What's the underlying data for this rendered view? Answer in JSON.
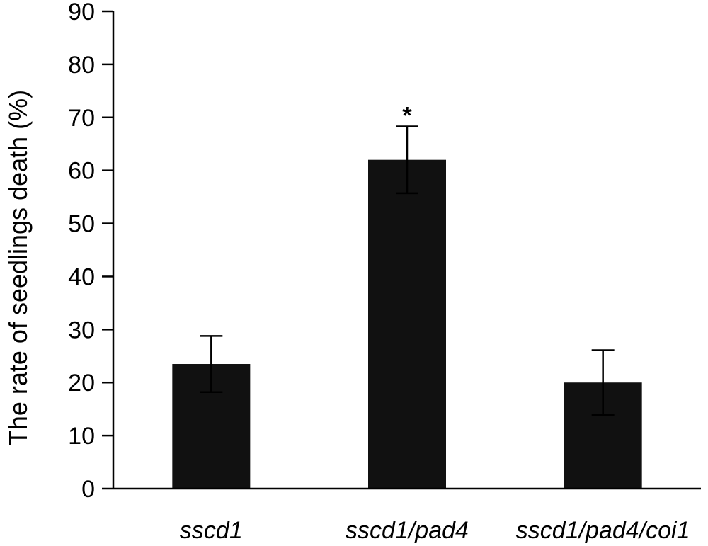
{
  "chart_data": {
    "type": "bar",
    "categories": [
      "sscd1",
      "sscd1/pad4",
      "sscd1/pad4/coi1"
    ],
    "values": [
      23.5,
      62,
      20
    ],
    "errors": [
      5.3,
      6.3,
      6.1
    ],
    "annotations": [
      "",
      "*",
      ""
    ],
    "ylabel": "The rate of seedlings death (%)",
    "xlabel": "",
    "ylim": [
      0,
      90
    ],
    "yticks": [
      0,
      10,
      20,
      30,
      40,
      50,
      60,
      70,
      80,
      90
    ],
    "grid": false,
    "legend": "none",
    "bar_color": "#111111"
  }
}
